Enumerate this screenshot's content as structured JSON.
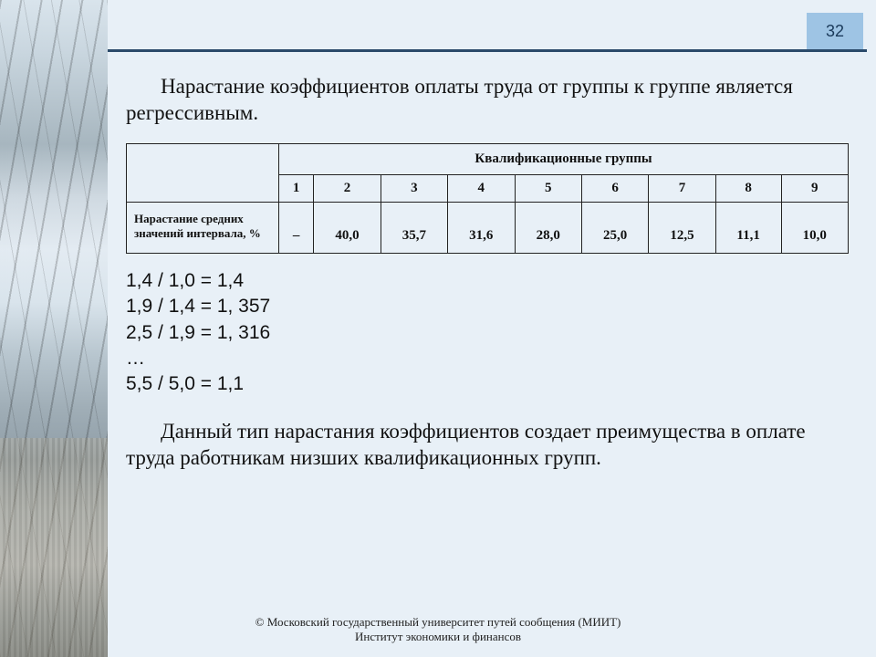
{
  "page_number": "32",
  "colors": {
    "slide_bg": "#e8f0f7",
    "rule": "#2a4a6a",
    "page_badge_bg": "#9ec4e4",
    "page_badge_fg": "#1a3a5a",
    "table_border": "#222222",
    "text": "#111111"
  },
  "paragraph_top": "Нарастание коэффициентов оплаты труда от группы к группе является регрессивным.",
  "table": {
    "type": "table",
    "header_title": "Квалификационные группы",
    "row_label": "Нарастание средних значений интервала, %",
    "groups": [
      "1",
      "2",
      "3",
      "4",
      "5",
      "6",
      "7",
      "8",
      "9"
    ],
    "values": [
      "–",
      "40,0",
      "35,7",
      "31,6",
      "28,0",
      "25,0",
      "12,5",
      "11,1",
      "10,0"
    ],
    "font": {
      "header_pt": 15,
      "cell_pt": 15,
      "rowhead_pt": 13
    }
  },
  "calc_lines": [
    "1,4 / 1,0 = 1,4",
    "1,9 / 1,4 = 1, 357",
    "2,5 / 1,9 = 1, 316",
    "…",
    "5,5 / 5,0 = 1,1"
  ],
  "paragraph_bottom": "Данный тип нарастания коэффициентов создает преимущества в оплате труда работникам низших квалификационных групп.",
  "footer_line1": "© Московский государственный университет путей сообщения (МИИТ)",
  "footer_line2": "Институт экономики и финансов"
}
